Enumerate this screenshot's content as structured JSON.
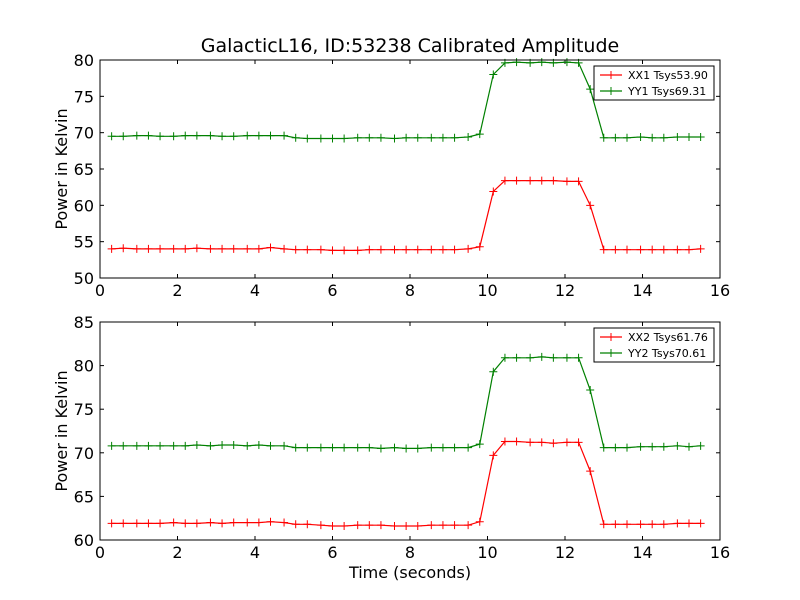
{
  "chart_data": [
    {
      "type": "line",
      "title": "GalacticL16, ID:53238 Calibrated Amplitude",
      "xlabel": "",
      "ylabel": "Power in Kelvin",
      "xlim": [
        0,
        16
      ],
      "ylim": [
        50,
        80
      ],
      "xticks": [
        "0",
        "2",
        "4",
        "6",
        "8",
        "10",
        "12",
        "14",
        "16"
      ],
      "yticks": [
        "50",
        "55",
        "60",
        "65",
        "70",
        "75",
        "80"
      ],
      "legend_placement": "top-right",
      "x": [
        0.3,
        0.6,
        0.95,
        1.25,
        1.55,
        1.9,
        2.2,
        2.5,
        2.85,
        3.15,
        3.45,
        3.8,
        4.1,
        4.4,
        4.75,
        5.05,
        5.35,
        5.7,
        6.0,
        6.3,
        6.65,
        6.95,
        7.25,
        7.6,
        7.9,
        8.2,
        8.55,
        8.85,
        9.15,
        9.5,
        9.8,
        10.15,
        10.45,
        10.75,
        11.1,
        11.4,
        11.7,
        12.05,
        12.35,
        12.65,
        13.0,
        13.3,
        13.6,
        13.95,
        14.25,
        14.55,
        14.9,
        15.2,
        15.5
      ],
      "series": [
        {
          "name": "XX1 Tsys53.90",
          "color": "#ff0000",
          "values": [
            54.0,
            54.1,
            54.0,
            54.0,
            54.0,
            54.0,
            54.0,
            54.1,
            54.0,
            54.0,
            54.0,
            54.0,
            54.0,
            54.2,
            54.0,
            53.9,
            53.9,
            53.9,
            53.8,
            53.8,
            53.8,
            53.9,
            53.9,
            53.9,
            53.9,
            53.9,
            53.9,
            53.9,
            53.9,
            54.0,
            54.3,
            61.9,
            63.4,
            63.4,
            63.4,
            63.4,
            63.4,
            63.3,
            63.3,
            60.0,
            53.9,
            53.9,
            53.9,
            53.9,
            53.9,
            53.9,
            53.9,
            53.9,
            54.0
          ]
        },
        {
          "name": "YY1 Tsys69.31",
          "color": "#008000",
          "values": [
            69.5,
            69.5,
            69.6,
            69.6,
            69.5,
            69.5,
            69.6,
            69.6,
            69.6,
            69.5,
            69.5,
            69.6,
            69.6,
            69.6,
            69.6,
            69.3,
            69.2,
            69.2,
            69.2,
            69.2,
            69.3,
            69.3,
            69.3,
            69.2,
            69.3,
            69.3,
            69.3,
            69.3,
            69.3,
            69.4,
            69.8,
            78.0,
            79.6,
            79.7,
            79.6,
            79.7,
            79.6,
            79.7,
            79.6,
            76.0,
            69.3,
            69.3,
            69.3,
            69.4,
            69.3,
            69.3,
            69.4,
            69.4,
            69.4
          ]
        }
      ]
    },
    {
      "type": "line",
      "title": "",
      "xlabel": "Time (seconds)",
      "ylabel": "Power in Kelvin",
      "xlim": [
        0,
        16
      ],
      "ylim": [
        60,
        85
      ],
      "xticks": [
        "0",
        "2",
        "4",
        "6",
        "8",
        "10",
        "12",
        "14",
        "16"
      ],
      "yticks": [
        "60",
        "65",
        "70",
        "75",
        "80",
        "85"
      ],
      "legend_placement": "top-right",
      "x": [
        0.3,
        0.6,
        0.95,
        1.25,
        1.55,
        1.9,
        2.2,
        2.5,
        2.85,
        3.15,
        3.45,
        3.8,
        4.1,
        4.4,
        4.75,
        5.05,
        5.35,
        5.7,
        6.0,
        6.3,
        6.65,
        6.95,
        7.25,
        7.6,
        7.9,
        8.2,
        8.55,
        8.85,
        9.15,
        9.5,
        9.8,
        10.15,
        10.45,
        10.75,
        11.1,
        11.4,
        11.7,
        12.05,
        12.35,
        12.65,
        13.0,
        13.3,
        13.6,
        13.95,
        14.25,
        14.55,
        14.9,
        15.2,
        15.5
      ],
      "series": [
        {
          "name": "XX2 Tsys61.76",
          "color": "#ff0000",
          "values": [
            61.9,
            61.9,
            61.9,
            61.9,
            61.9,
            62.0,
            61.9,
            61.9,
            62.0,
            61.9,
            62.0,
            62.0,
            62.0,
            62.1,
            62.0,
            61.8,
            61.8,
            61.7,
            61.6,
            61.6,
            61.7,
            61.7,
            61.7,
            61.6,
            61.6,
            61.6,
            61.7,
            61.7,
            61.7,
            61.7,
            62.1,
            69.7,
            71.3,
            71.3,
            71.2,
            71.2,
            71.1,
            71.2,
            71.2,
            67.9,
            61.8,
            61.8,
            61.8,
            61.8,
            61.8,
            61.8,
            61.9,
            61.9,
            61.9
          ],
          "draw_from_index": 0
        },
        {
          "name": "YY2 Tsys70.61",
          "color": "#008000",
          "values": [
            70.8,
            70.8,
            70.8,
            70.8,
            70.8,
            70.8,
            70.8,
            70.9,
            70.8,
            70.9,
            70.9,
            70.8,
            70.9,
            70.8,
            70.8,
            70.6,
            70.6,
            70.6,
            70.6,
            70.6,
            70.6,
            70.6,
            70.5,
            70.6,
            70.5,
            70.5,
            70.6,
            70.6,
            70.6,
            70.6,
            71.0,
            79.3,
            80.9,
            80.9,
            80.9,
            81.0,
            80.9,
            80.9,
            80.9,
            77.2,
            70.6,
            70.6,
            70.6,
            70.7,
            70.7,
            70.7,
            70.8,
            70.7,
            70.8
          ]
        }
      ]
    }
  ]
}
